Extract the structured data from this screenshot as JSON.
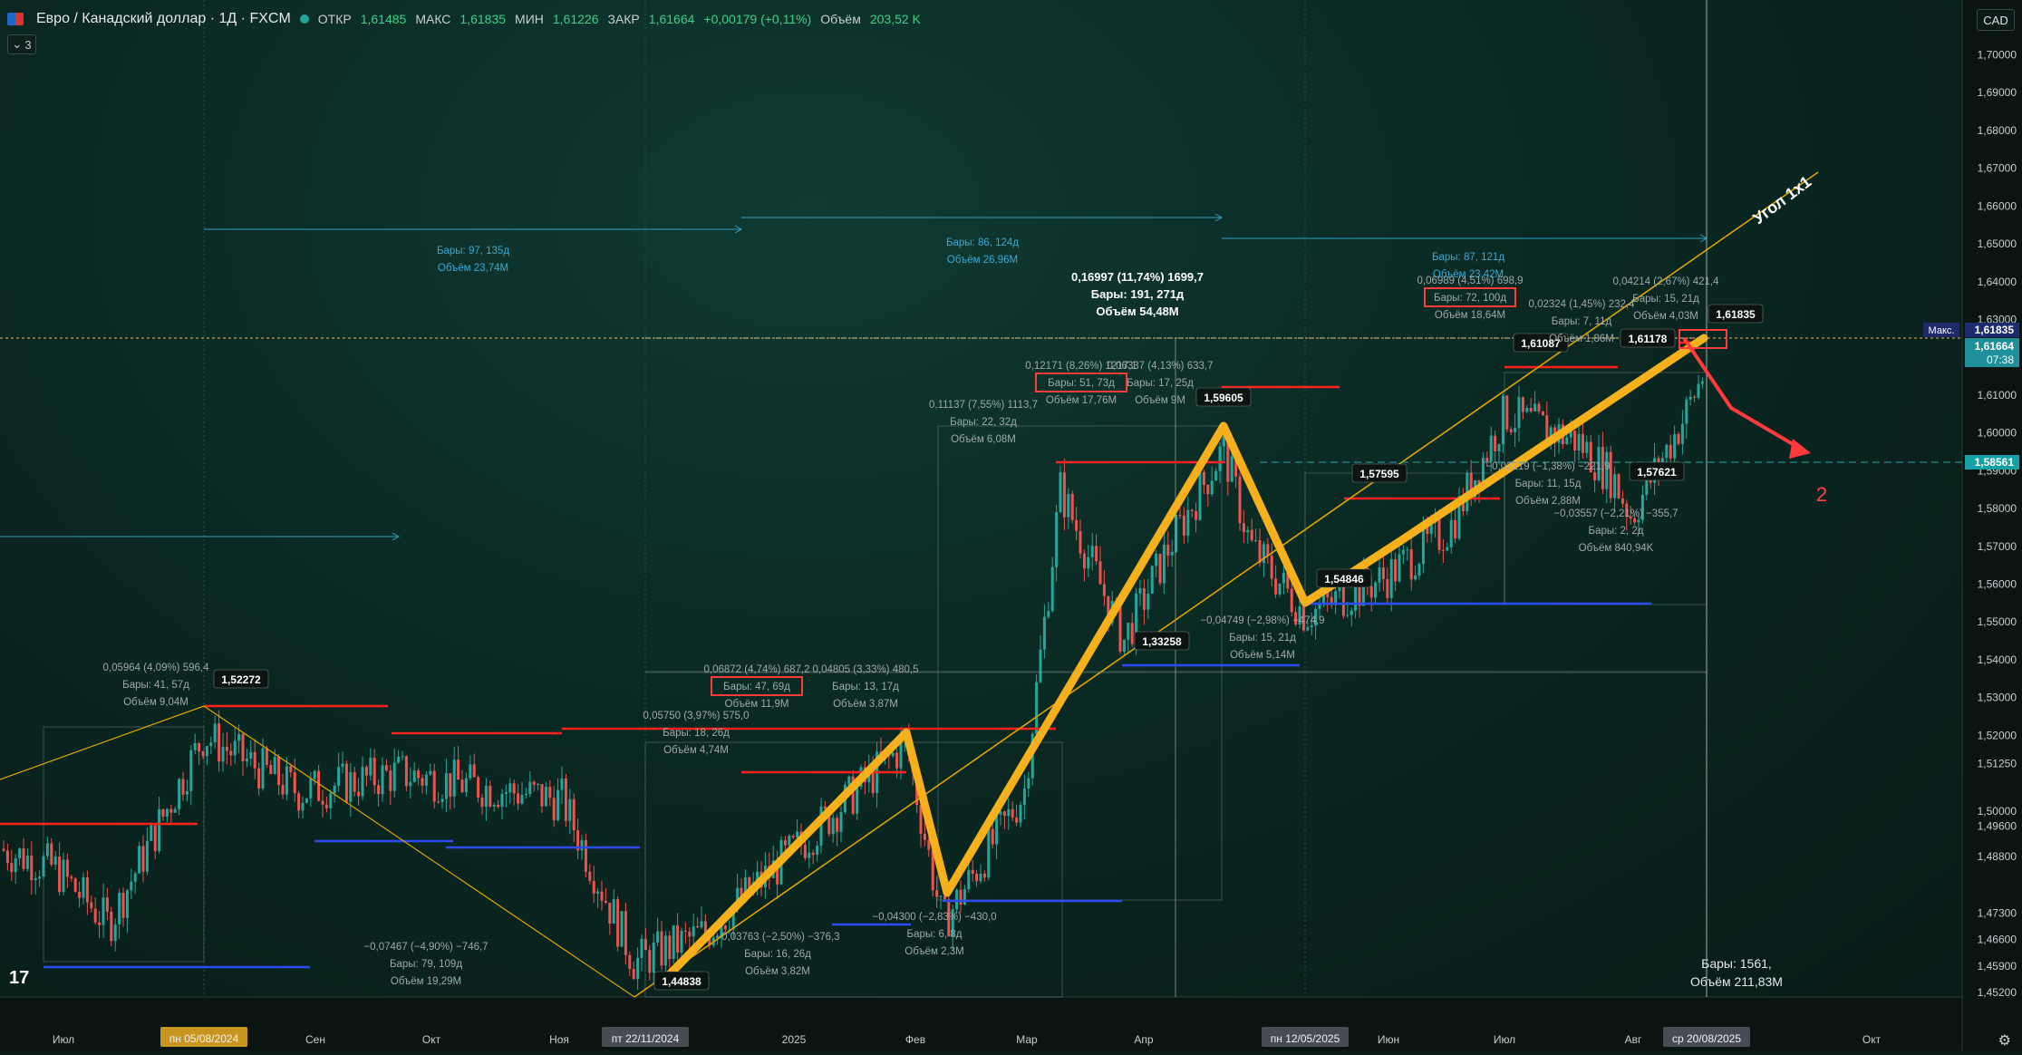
{
  "header": {
    "symbol": "Евро / Канадский доллар · 1Д · FXCM",
    "open_label": "ОТКР",
    "open_value": "1,61485",
    "high_label": "МАКС",
    "high_value": "1,61835",
    "low_label": "МИН",
    "low_value": "1,61226",
    "close_label": "ЗАКР",
    "close_value": "1,61664",
    "change_value": "+0,00179 (+0,11%)",
    "volume_label": "Объём",
    "volume_value": "203,52 K",
    "indicators_count": "3",
    "currency": "CAD"
  },
  "colors": {
    "candle_up": "#26a69a",
    "candle_down": "#ef5350",
    "zigzag": "#f6b01b",
    "level_red": "#ff2020",
    "level_blue": "#2a4df0",
    "measure": "#33a0c8",
    "price_tag": "#1f8f9a",
    "box_red": "#ff3b3b"
  },
  "chart_data": {
    "type": "line",
    "title": "",
    "xlabel": "",
    "ylabel": "",
    "ylim": [
      1.452,
      1.703
    ],
    "x_ticks": [
      "Июл",
      "Сен",
      "Окт",
      "Ноя",
      "2025",
      "Фев",
      "Мар",
      "Апр",
      "Июн",
      "Июл",
      "Авг",
      "Окт"
    ],
    "x_highlight_labels": [
      "пн 05/08/2024",
      "пт 22/11/2024",
      "пн 12/05/2025",
      "ср 20/08/2025"
    ],
    "y_ticks": [
      "1,70000",
      "1,69000",
      "1,68000",
      "1,67000",
      "1,66000",
      "1,65000",
      "1,64000",
      "1,63000",
      "1,62000",
      "1,61000",
      "1,60000",
      "1,59000",
      "1,58000",
      "1,57000",
      "1,56000",
      "1,55000",
      "1,54000",
      "1,53000",
      "1,52000",
      "1,51250",
      "1,50000",
      "1,49600",
      "1,48800",
      "1,47300",
      "1,46600",
      "1,45900",
      "1,45200"
    ],
    "price_tags": [
      {
        "label": "Макс.",
        "value": "1,61835"
      },
      {
        "label": "",
        "value": "1,61664"
      },
      {
        "label": "",
        "value": "07:38"
      },
      {
        "label": "",
        "value": "1,58561"
      }
    ],
    "zigzag_series": {
      "name": "",
      "points": [
        [
          0.0,
          1.4548
        ],
        [
          0.1,
          1.5162
        ],
        [
          0.12,
          1.4744
        ],
        [
          0.22,
          1.5863
        ],
        [
          0.27,
          1.596
        ],
        [
          0.3,
          1.552
        ],
        [
          0.46,
          1.605
        ],
        [
          0.52,
          1.6184
        ]
      ]
    },
    "labeled_points": [
      "1,52272",
      "1,44838",
      "1,33258",
      "1,59605",
      "1,57595",
      "1,54846",
      "1,61087",
      "1,61178",
      "1,61835",
      "1,57621"
    ],
    "annotations": [
      {
        "id": "a1",
        "lines": [
          "Бары: 97, 135д",
          "Объём 23,74M"
        ]
      },
      {
        "id": "a2",
        "lines": [
          "Бары: 86, 124д",
          "Объём 26,96M"
        ]
      },
      {
        "id": "a3",
        "lines": [
          "0,16997 (11,74%) 1699,7",
          "Бары: 191, 271д",
          "Объём 54,48M"
        ]
      },
      {
        "id": "a4",
        "lines": [
          "Бары: 87, 121д",
          "Объём 23,42M"
        ]
      },
      {
        "id": "a5",
        "lines": [
          "0,06989 (4,51%) 698,9",
          "Бары: 72, 100д",
          "Объём 18,64M"
        ]
      },
      {
        "id": "a6",
        "lines": [
          "0,04214 (2,67%) 421,4",
          "Бары: 15, 21д",
          "Объём 4,03M"
        ]
      },
      {
        "id": "a7",
        "lines": [
          "0,12171 (8,26%) 1217,1",
          "Бары: 51, 73д",
          "Объём 17,76M"
        ]
      },
      {
        "id": "a8",
        "lines": [
          "0,06337 (4,13%) 633,7",
          "Бары: 17, 25д",
          "Объём 9M"
        ]
      },
      {
        "id": "a9",
        "lines": [
          "0,11137 (7,55%) 1113,7",
          "Бары: 22, 32д",
          "Объём 6,08M"
        ]
      },
      {
        "id": "a10",
        "lines": [
          "0,05964 (4,09%) 596,4",
          "Бары: 41, 57д",
          "Объём 9,04M"
        ]
      },
      {
        "id": "a11",
        "lines": [
          "0,06872 (4,74%) 687,2",
          "Бары: 47, 69д",
          "Объём 11,9M"
        ]
      },
      {
        "id": "a12",
        "lines": [
          "0,04805 (3,33%) 480,5",
          "Бары: 13, 17д",
          "Объём 3,87M"
        ]
      },
      {
        "id": "a13",
        "lines": [
          "0,05750 (3,97%) 575,0",
          "Бары: 18, 26д",
          "Объём 4,74M"
        ]
      },
      {
        "id": "a14",
        "lines": [
          "−0,04749 (−2,98%) −474,9",
          "Бары: 15, 21д",
          "Объём 5,14M"
        ]
      },
      {
        "id": "a15",
        "lines": [
          "−0,02219 (−1,38%) −221,9",
          "Бары: 11, 15д",
          "Объём 2,88M"
        ]
      },
      {
        "id": "a16",
        "lines": [
          "−0,03557 (−2,21%) −355,7",
          "Бары: 2, 2д",
          "Объём 840,94K"
        ]
      },
      {
        "id": "a17",
        "lines": [
          "−0,07467 (−4,90%) −746,7",
          "Бары: 79, 109д",
          "Объём 19,29M"
        ]
      },
      {
        "id": "a18",
        "lines": [
          "−0,03763 (−2,50%) −376,3",
          "Бары: 16, 26д",
          "Объём 3,82M"
        ]
      },
      {
        "id": "a19",
        "lines": [
          "−0,04300 (−2,83%) −430,0",
          "Бары: 6, 8д",
          "Объём 2,3M"
        ]
      },
      {
        "id": "a20",
        "lines": [
          "0,02324 (1,45%) 232,4",
          "Бары: 7, 11д",
          "Объём 1,86M"
        ]
      }
    ],
    "bottom_summary": [
      "Бары: 1561,",
      "Объём 211,83M"
    ],
    "angle_label": "Угол 1х1",
    "forecast_label": "2"
  }
}
